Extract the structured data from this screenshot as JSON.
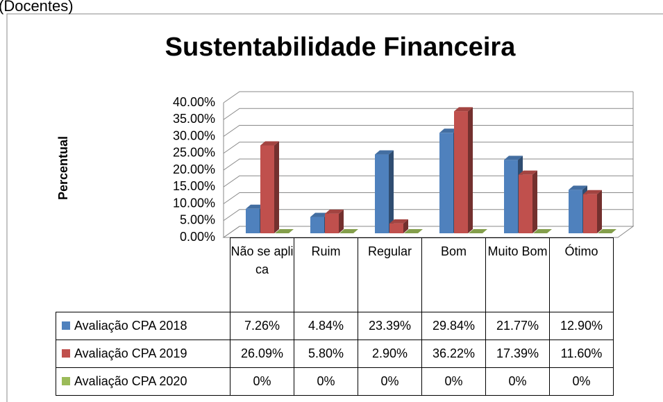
{
  "caption": "(Docentes)",
  "chart_data": {
    "type": "bar3d",
    "title": "Sustentabilidade Financeira",
    "y_label": "Percentual",
    "categories": [
      "Não se aplica",
      "Ruim",
      "Regular",
      "Bom",
      "Muito Bom",
      "Ótimo"
    ],
    "series": [
      {
        "name": "Avaliação CPA 2018",
        "color": "#4f81bd",
        "values": [
          7.26,
          4.84,
          23.39,
          29.84,
          21.77,
          12.9
        ],
        "value_labels": [
          "7.26%",
          "4.84%",
          "23.39%",
          "29.84%",
          "21.77%",
          "12.90%"
        ]
      },
      {
        "name": "Avaliação CPA 2019",
        "color": "#c0504d",
        "values": [
          26.09,
          5.8,
          2.9,
          36.22,
          17.39,
          11.6
        ],
        "value_labels": [
          "26.09%",
          "5.80%",
          "2.90%",
          "36.22%",
          "17.39%",
          "11.60%"
        ]
      },
      {
        "name": "Avaliação CPA 2020",
        "color": "#9bbb59",
        "values": [
          0,
          0,
          0,
          0,
          0,
          0
        ],
        "value_labels": [
          "0%",
          "0%",
          "0%",
          "0%",
          "0%",
          "0%"
        ]
      }
    ],
    "ylim": [
      0,
      40
    ],
    "yticks": [
      {
        "value": 0,
        "label": "0.00%"
      },
      {
        "value": 5,
        "label": "5.00%"
      },
      {
        "value": 10,
        "label": "10.00%"
      },
      {
        "value": 15,
        "label": "15.00%"
      },
      {
        "value": 20,
        "label": "20.00%"
      },
      {
        "value": 25,
        "label": "25.00%"
      },
      {
        "value": 30,
        "label": "30.00%"
      },
      {
        "value": 35,
        "label": "35.00%"
      },
      {
        "value": 40,
        "label": "40.00%"
      }
    ],
    "grid": true,
    "data_table": true
  }
}
